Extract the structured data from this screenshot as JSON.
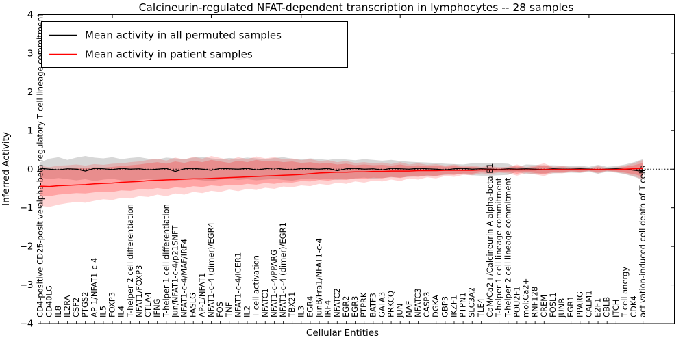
{
  "figure": {
    "title": "Calcineurin-regulated NFAT-dependent transcription in lymphocytes -- 28 samples",
    "background": "#ffffff"
  },
  "axes": {
    "xlabel": "Cellular Entities",
    "ylabel": "Inferred Activity"
  },
  "legend": {
    "position": "upper left",
    "entries": [
      {
        "label": "Mean activity in all permuted samples",
        "color": "#000000"
      },
      {
        "label": "Mean activity in patient samples",
        "color": "#ff0000"
      }
    ]
  },
  "chart_data": {
    "type": "line",
    "title": "Calcineurin-regulated NFAT-dependent transcription in lymphocytes -- 28 samples",
    "xlabel": "Cellular Entities",
    "ylabel": "Inferred Activity",
    "ylim": [
      -4,
      4
    ],
    "yticks": [
      -4,
      -3,
      -2,
      -1,
      0,
      1,
      2,
      3,
      4
    ],
    "grid": false,
    "legend_position": "upper left",
    "zero_line": {
      "value": 0,
      "style": "dotted",
      "color": "#000000"
    },
    "categories": [
      "CD4-positive CD25-positive alpha-beta regulatory T cell lineage commitment",
      "CD40LG",
      "IL8",
      "IL2RA",
      "CSF2",
      "PTGS2",
      "AP-1/NFAT1-c-4",
      "IL5",
      "FOXP3",
      "IL4",
      "T-helper 2 cell differentiation",
      "NFAT1/FOXP3",
      "CTLA4",
      "IFNG",
      "T-helper 1 cell differentiation",
      "Jun/NFAT1-c-4/p21SNFT",
      "NFAT1-c-4/MAF/IRF4",
      "FASLG",
      "AP-1/NFAT1",
      "NFAT1-c-4 (dimer)/EGR4",
      "FOS",
      "TNF",
      "NFAT1-c-4/ICER1",
      "IL2",
      "T cell activation",
      "NFATC1",
      "NFAT1-c-4/PPARG",
      "NFAT1-c-4 (dimer)/EGR1",
      "TBX21",
      "IL3",
      "EGR4",
      "JunB/Fra1/NFAT1-c-4",
      "IRF4",
      "NFATC2",
      "EGR2",
      "EGR3",
      "PTPRK",
      "BATF3",
      "GATA3",
      "PRKCQ",
      "JUN",
      "MAF",
      "NFATC3",
      "CASP3",
      "DGKA",
      "GBP3",
      "IKZF1",
      "PTPN1",
      "SLC3A2",
      "TLE4",
      "CaM/Ca2+/Calcineurin A alpha-beta B1",
      "T-helper 1 cell lineage commitment",
      "T-helper 2 cell lineage commitment",
      "POU2F1",
      "mol:Ca2+",
      "RNF128",
      "CREM",
      "FOSL1",
      "JUNB",
      "EGR1",
      "PPARG",
      "CALM1",
      "E2F1",
      "CBLB",
      "ITCH",
      "T cell anergy",
      "CDK4",
      "activation-induced cell death of T cells"
    ],
    "series": [
      {
        "name": "Mean activity in all permuted samples",
        "color": "#000000",
        "values": [
          0.02,
          0.0,
          -0.02,
          0.01,
          0.0,
          -0.05,
          0.02,
          0.01,
          -0.01,
          0.02,
          0.0,
          0.01,
          -0.02,
          0.0,
          0.02,
          -0.06,
          0.01,
          0.02,
          0.0,
          -0.03,
          0.02,
          0.01,
          0.0,
          0.02,
          -0.02,
          0.01,
          0.03,
          0.0,
          -0.02,
          0.02,
          0.01,
          0.0,
          0.02,
          -0.04,
          0.01,
          0.02,
          0.0,
          0.01,
          -0.02,
          0.02,
          0.01,
          0.0,
          0.02,
          0.01,
          0.0,
          -0.02,
          0.01,
          0.02,
          0.0,
          0.01,
          0.0,
          -0.01,
          0.01,
          0.0,
          0.01,
          0.0,
          -0.01,
          0.01,
          0.0,
          0.0,
          0.01,
          0.0,
          -0.01,
          0.0,
          0.01,
          0.0,
          -0.03,
          -0.06
        ]
      },
      {
        "name": "Mean activity in patient samples",
        "color": "#ff0000",
        "values": [
          -0.44,
          -0.45,
          -0.43,
          -0.42,
          -0.41,
          -0.4,
          -0.38,
          -0.37,
          -0.36,
          -0.34,
          -0.33,
          -0.32,
          -0.3,
          -0.29,
          -0.28,
          -0.27,
          -0.26,
          -0.25,
          -0.25,
          -0.24,
          -0.23,
          -0.22,
          -0.21,
          -0.2,
          -0.19,
          -0.18,
          -0.17,
          -0.16,
          -0.15,
          -0.14,
          -0.12,
          -0.1,
          -0.09,
          -0.08,
          -0.08,
          -0.07,
          -0.07,
          -0.06,
          -0.06,
          -0.05,
          -0.05,
          -0.05,
          -0.04,
          -0.04,
          -0.04,
          -0.03,
          -0.03,
          -0.03,
          -0.03,
          -0.02,
          -0.02,
          -0.02,
          -0.02,
          -0.02,
          -0.02,
          -0.02,
          -0.01,
          -0.01,
          -0.01,
          -0.01,
          -0.01,
          -0.01,
          -0.01,
          -0.01,
          -0.01,
          0.0,
          0.01,
          0.02
        ]
      }
    ],
    "bands": [
      {
        "name": "permuted samples spread",
        "color": "rgba(130,130,130,0.32)",
        "upper": [
          0.18,
          0.27,
          0.31,
          0.24,
          0.3,
          0.34,
          0.3,
          0.28,
          0.31,
          0.26,
          0.29,
          0.31,
          0.27,
          0.25,
          0.3,
          0.28,
          0.26,
          0.3,
          0.32,
          0.28,
          0.26,
          0.29,
          0.27,
          0.3,
          0.28,
          0.26,
          0.29,
          0.31,
          0.27,
          0.25,
          0.28,
          0.26,
          0.24,
          0.27,
          0.25,
          0.23,
          0.26,
          0.24,
          0.22,
          0.24,
          0.21,
          0.19,
          0.18,
          0.17,
          0.16,
          0.14,
          0.13,
          0.12,
          0.15,
          0.16,
          0.16,
          0.15,
          0.14,
          0.05,
          0.12,
          0.11,
          0.1,
          0.1,
          0.09,
          0.08,
          0.09,
          0.06,
          0.11,
          0.06,
          0.08,
          0.12,
          0.18,
          0.26
        ],
        "lower": [
          -0.22,
          -0.26,
          -0.23,
          -0.26,
          -0.29,
          -0.26,
          -0.31,
          -0.27,
          -0.25,
          -0.29,
          -0.31,
          -0.28,
          -0.26,
          -0.29,
          -0.27,
          -0.3,
          -0.28,
          -0.26,
          -0.29,
          -0.31,
          -0.27,
          -0.25,
          -0.28,
          -0.26,
          -0.29,
          -0.27,
          -0.25,
          -0.28,
          -0.3,
          -0.26,
          -0.24,
          -0.27,
          -0.25,
          -0.28,
          -0.26,
          -0.24,
          -0.22,
          -0.25,
          -0.23,
          -0.21,
          -0.22,
          -0.2,
          -0.19,
          -0.18,
          -0.17,
          -0.15,
          -0.14,
          -0.13,
          -0.16,
          -0.17,
          -0.17,
          -0.16,
          -0.15,
          -0.06,
          -0.13,
          -0.12,
          -0.11,
          -0.11,
          -0.1,
          -0.09,
          -0.1,
          -0.07,
          -0.12,
          -0.07,
          -0.09,
          -0.13,
          -0.2,
          -0.28
        ]
      },
      {
        "name": "patient samples spread (outer)",
        "color": "rgba(255,40,40,0.20)",
        "upper": [
          0.08,
          0.05,
          0.09,
          0.1,
          0.12,
          0.09,
          0.13,
          0.11,
          0.14,
          0.15,
          0.18,
          0.2,
          0.24,
          0.27,
          0.22,
          0.3,
          0.25,
          0.32,
          0.27,
          0.34,
          0.29,
          0.24,
          0.31,
          0.26,
          0.33,
          0.28,
          0.31,
          0.26,
          0.28,
          0.23,
          0.26,
          0.21,
          0.23,
          0.18,
          0.21,
          0.16,
          0.18,
          0.15,
          0.17,
          0.13,
          0.18,
          0.12,
          0.15,
          0.11,
          0.13,
          0.09,
          0.12,
          0.08,
          0.09,
          0.06,
          0.08,
          0.05,
          0.06,
          0.12,
          0.05,
          0.09,
          0.15,
          0.06,
          0.08,
          0.05,
          0.06,
          0.03,
          0.08,
          0.03,
          0.05,
          0.09,
          0.15,
          0.24
        ],
        "lower": [
          -0.95,
          -0.98,
          -0.92,
          -0.88,
          -0.85,
          -0.87,
          -0.82,
          -0.78,
          -0.8,
          -0.74,
          -0.76,
          -0.7,
          -0.72,
          -0.66,
          -0.7,
          -0.63,
          -0.66,
          -0.59,
          -0.62,
          -0.56,
          -0.59,
          -0.53,
          -0.57,
          -0.51,
          -0.54,
          -0.48,
          -0.51,
          -0.45,
          -0.47,
          -0.42,
          -0.44,
          -0.38,
          -0.41,
          -0.35,
          -0.38,
          -0.32,
          -0.35,
          -0.3,
          -0.32,
          -0.27,
          -0.31,
          -0.24,
          -0.27,
          -0.21,
          -0.24,
          -0.18,
          -0.2,
          -0.15,
          -0.16,
          -0.11,
          -0.13,
          -0.09,
          -0.11,
          -0.17,
          -0.1,
          -0.14,
          -0.18,
          -0.1,
          -0.11,
          -0.07,
          -0.09,
          -0.05,
          -0.11,
          -0.05,
          -0.08,
          -0.12,
          -0.18,
          -0.27
        ]
      },
      {
        "name": "patient samples spread (inner)",
        "color": "rgba(255,40,40,0.28)",
        "upper": [
          0.0,
          -0.02,
          0.0,
          0.02,
          0.03,
          0.02,
          0.05,
          0.04,
          0.06,
          0.08,
          0.1,
          0.12,
          0.15,
          0.18,
          0.14,
          0.2,
          0.16,
          0.22,
          0.18,
          0.24,
          0.2,
          0.16,
          0.22,
          0.18,
          0.24,
          0.2,
          0.22,
          0.18,
          0.2,
          0.16,
          0.18,
          0.14,
          0.16,
          0.12,
          0.14,
          0.1,
          0.12,
          0.1,
          0.11,
          0.09,
          0.12,
          0.08,
          0.1,
          0.07,
          0.09,
          0.06,
          0.08,
          0.05,
          0.06,
          0.04,
          0.05,
          0.03,
          0.04,
          0.08,
          0.03,
          0.06,
          0.1,
          0.04,
          0.05,
          0.03,
          0.04,
          0.02,
          0.05,
          0.02,
          0.03,
          0.06,
          0.1,
          0.16
        ],
        "lower": [
          -0.68,
          -0.7,
          -0.66,
          -0.64,
          -0.62,
          -0.63,
          -0.6,
          -0.58,
          -0.59,
          -0.55,
          -0.56,
          -0.52,
          -0.53,
          -0.49,
          -0.52,
          -0.47,
          -0.49,
          -0.44,
          -0.46,
          -0.42,
          -0.44,
          -0.4,
          -0.42,
          -0.38,
          -0.4,
          -0.36,
          -0.38,
          -0.34,
          -0.35,
          -0.31,
          -0.32,
          -0.28,
          -0.3,
          -0.26,
          -0.28,
          -0.24,
          -0.26,
          -0.22,
          -0.24,
          -0.2,
          -0.23,
          -0.18,
          -0.2,
          -0.16,
          -0.18,
          -0.13,
          -0.15,
          -0.11,
          -0.12,
          -0.08,
          -0.1,
          -0.07,
          -0.08,
          -0.12,
          -0.07,
          -0.1,
          -0.13,
          -0.07,
          -0.08,
          -0.05,
          -0.07,
          -0.04,
          -0.08,
          -0.04,
          -0.06,
          -0.09,
          -0.13,
          -0.19
        ]
      }
    ]
  }
}
